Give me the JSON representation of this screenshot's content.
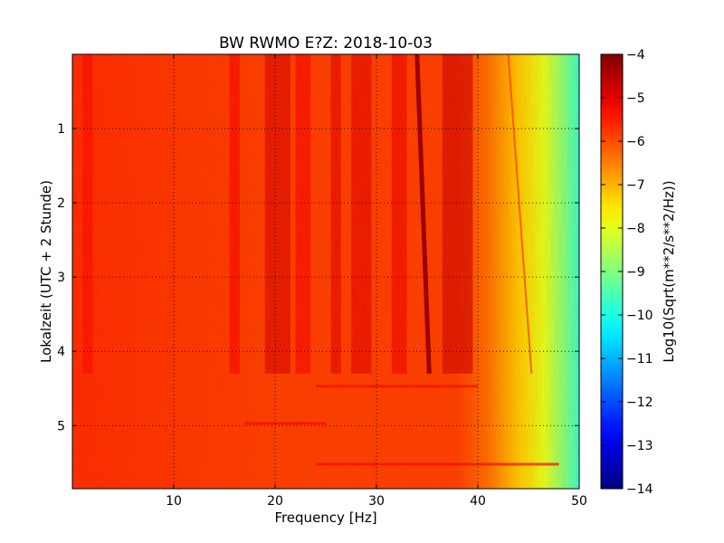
{
  "chart_data": {
    "type": "heatmap",
    "title": "BW RWMO E?Z: 2018-10-03",
    "xlabel": "Frequency [Hz]",
    "ylabel": "Lokalzeit (UTC + 2 Stunde)",
    "xlim": [
      0,
      50
    ],
    "ylim": [
      5.85,
      0
    ],
    "x_ticks": [
      10,
      20,
      30,
      40,
      50
    ],
    "y_ticks": [
      1,
      2,
      3,
      4,
      5
    ],
    "grid": true,
    "colorbar": {
      "label": "Log10(Sqrt(m**2/s**2/Hz))",
      "range": [
        -14,
        -4
      ],
      "ticks": [
        -4,
        -5,
        -6,
        -7,
        -8,
        -9,
        -10,
        -11,
        -12,
        -13,
        -14
      ],
      "colormap": "jet"
    },
    "description_points": {
      "note": "approximate spectral levels read from colors",
      "low_freq_level": -5.6,
      "broadband_level": -5.8,
      "high_freq_edge_level": -9.8,
      "transition_time_hours": 4.3
    },
    "features": [
      {
        "label": "narrowband line",
        "freq_start_hz": 34.0,
        "freq_end_hz": 35.2,
        "time_start_h": 0,
        "time_end_h": 4.3,
        "level": -4.3
      },
      {
        "label": "weak drifting line",
        "freq_start_hz": 43.0,
        "freq_end_hz": 45.3,
        "time_start_h": 0,
        "time_end_h": 4.3,
        "level": -5.8
      }
    ]
  }
}
